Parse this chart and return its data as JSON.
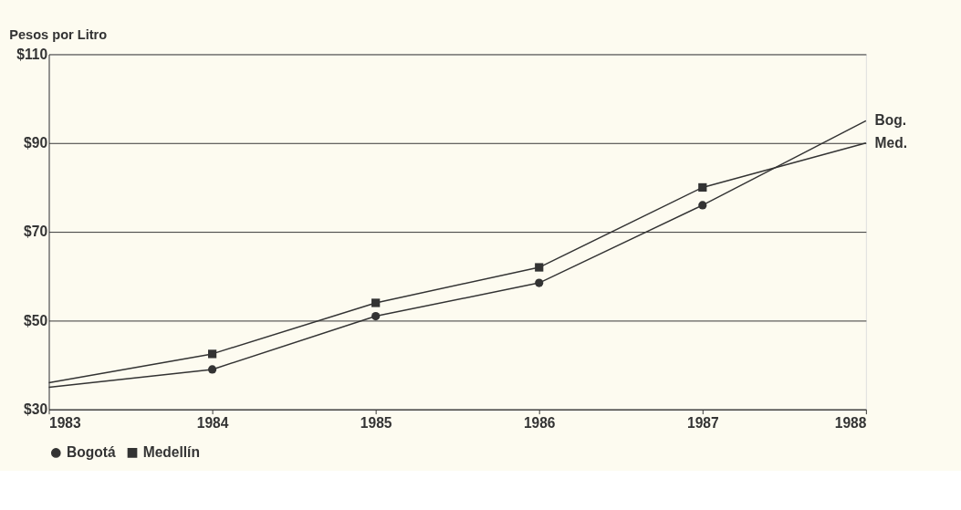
{
  "chart_data": {
    "type": "line",
    "ylabel": "Pesos por Litro",
    "categories": [
      "1983",
      "1984",
      "1985",
      "1986",
      "1987",
      "1988"
    ],
    "series": [
      {
        "name": "Bogotá",
        "color": "#333333",
        "marker": "circle",
        "values": [
          35,
          39,
          51,
          58.5,
          76,
          95
        ]
      },
      {
        "name": "Medellín",
        "color": "#333333",
        "marker": "square",
        "values": [
          36,
          42.5,
          54,
          62,
          80,
          90
        ]
      }
    ],
    "ylim": [
      30,
      110
    ],
    "yticks": [
      {
        "value": 30,
        "label": "$30"
      },
      {
        "value": 50,
        "label": "$50"
      },
      {
        "value": 70,
        "label": "$70"
      },
      {
        "value": 90,
        "label": "$90"
      },
      {
        "value": 110,
        "label": "$110"
      }
    ],
    "annotations": [
      {
        "text": "Bog.",
        "x": "1988",
        "y": 95
      },
      {
        "text": "Med.",
        "x": "1988",
        "y": 90
      }
    ],
    "grid": "y",
    "legend": "bottom",
    "line_style": "solid"
  }
}
